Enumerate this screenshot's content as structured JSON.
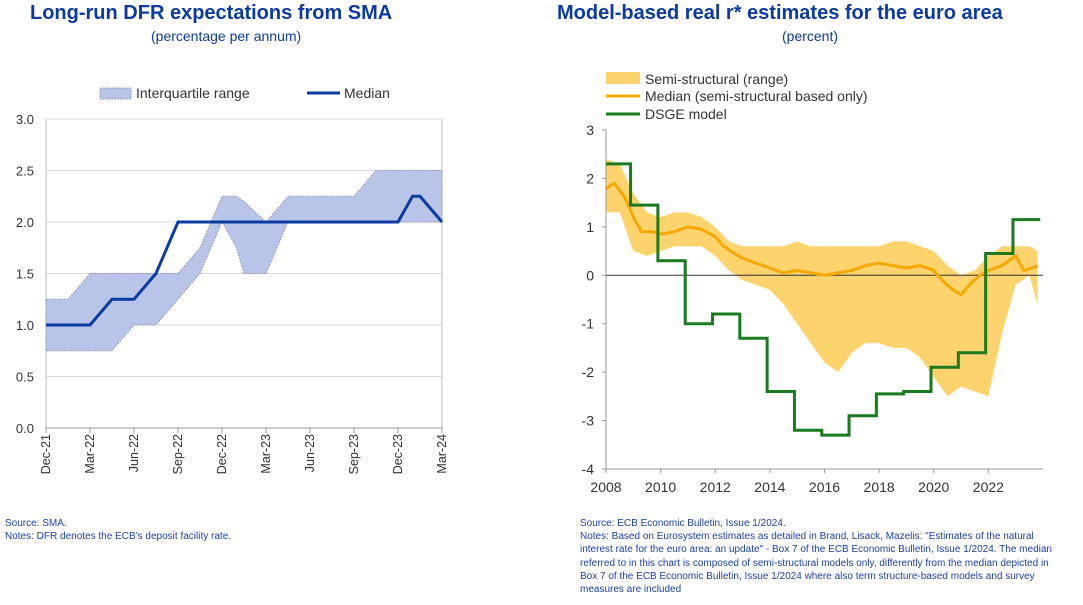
{
  "left": {
    "title": "Long-run DFR expectations from SMA",
    "subtitle": "(percentage per annum)",
    "source": "Source: SMA.",
    "notes": "Notes: DFR denotes the ECB’s deposit facility rate.",
    "colors": {
      "range_fill": "#b8c5e8",
      "range_edge": "#8a8fa6",
      "median": "#0b3aa0"
    },
    "chart_data": {
      "type": "area",
      "title": "Long-run DFR expectations from SMA",
      "ylim": [
        0,
        3
      ],
      "yticks": [
        "0.0",
        "0.5",
        "1.0",
        "1.5",
        "2.0",
        "2.5",
        "3.0"
      ],
      "xticks": [
        "Dec-21",
        "Mar-22",
        "Jun-22",
        "Sep-22",
        "Dec-22",
        "Mar-23",
        "Jun-23",
        "Sep-23",
        "Dec-23",
        "Mar-24"
      ],
      "legend": [
        "Interquartile range",
        "Median"
      ],
      "legend_position": "top",
      "grid": true,
      "x": [
        0,
        0.5,
        1,
        1.5,
        2,
        2.5,
        3,
        3.5,
        4,
        4.33,
        4.5,
        5,
        5.5,
        6,
        6.5,
        7,
        7.5,
        8,
        8.33,
        8.5,
        9
      ],
      "series": [
        {
          "name": "Interquartile range (upper)",
          "values": [
            1.25,
            1.25,
            1.5,
            1.5,
            1.5,
            1.5,
            1.5,
            1.75,
            2.25,
            2.25,
            2.2,
            2.0,
            2.25,
            2.25,
            2.25,
            2.25,
            2.5,
            2.5,
            2.5,
            2.5,
            2.5
          ]
        },
        {
          "name": "Interquartile range (lower)",
          "values": [
            0.75,
            0.75,
            0.75,
            0.75,
            1.0,
            1.0,
            1.25,
            1.5,
            2.0,
            1.75,
            1.5,
            1.5,
            2.0,
            2.0,
            2.0,
            2.0,
            2.0,
            2.0,
            2.0,
            2.0,
            2.0
          ]
        },
        {
          "name": "Median",
          "values": [
            1.0,
            1.0,
            1.0,
            1.25,
            1.25,
            1.5,
            2.0,
            2.0,
            2.0,
            2.0,
            2.0,
            2.0,
            2.0,
            2.0,
            2.0,
            2.0,
            2.0,
            2.0,
            2.25,
            2.25,
            2.0
          ]
        }
      ]
    }
  },
  "right": {
    "title": "Model-based real r* estimates for the euro area",
    "subtitle": "(percent)",
    "source": "Source: ECB Economic Bulletin, Issue 1/2024.",
    "notes": "Notes: Based on Eurosystem estimates as detailed in Brand, Lisack, Mazelis: \"Estimates of the natural interest rate for the euro area: an update\" - Box 7 of the ECB Economic Bulletin, Issue 1/2024. The median referred to in this chart is composed of semi-structural models only, differently from the median depicted in Box 7 of the ECB Economic Bulletin, Issue 1/2024 where also term structure-based models and survey measures are included",
    "colors": {
      "range_fill": "#fdd36e",
      "median": "#f5a800",
      "dsge": "#1a7a1f"
    },
    "chart_data": {
      "type": "line",
      "title": "Model-based real r* estimates for the euro area",
      "ylim": [
        -4,
        3
      ],
      "xlim": [
        2008,
        2024
      ],
      "yticks": [
        "3",
        "2",
        "1",
        "0",
        "-1",
        "-2",
        "-3",
        "-4"
      ],
      "xticks": [
        "2008",
        "2010",
        "2012",
        "2014",
        "2016",
        "2018",
        "2020",
        "2022"
      ],
      "legend": [
        "Semi-structural (range)",
        "Median (semi-structural based only)",
        "DSGE model"
      ],
      "legend_position": "top-left",
      "grid": false,
      "range_x": [
        2008,
        2008.5,
        2009,
        2009.5,
        2010,
        2010.5,
        2011,
        2011.5,
        2012,
        2012.5,
        2013,
        2013.5,
        2014,
        2014.5,
        2015,
        2015.5,
        2016,
        2016.5,
        2017,
        2017.5,
        2018,
        2018.5,
        2019,
        2019.5,
        2020,
        2020.5,
        2021,
        2021.5,
        2022,
        2022.5,
        2023,
        2023.5,
        2023.8
      ],
      "range_upper": [
        2.4,
        2.3,
        1.7,
        1.3,
        1.2,
        1.3,
        1.3,
        1.2,
        1.0,
        0.7,
        0.6,
        0.6,
        0.6,
        0.6,
        0.7,
        0.6,
        0.6,
        0.6,
        0.6,
        0.6,
        0.6,
        0.7,
        0.7,
        0.6,
        0.5,
        0.2,
        0.0,
        0.1,
        0.4,
        0.6,
        0.6,
        0.6,
        0.5
      ],
      "range_lower": [
        1.3,
        1.3,
        0.5,
        0.4,
        0.5,
        0.6,
        0.6,
        0.6,
        0.4,
        0.1,
        -0.1,
        -0.2,
        -0.3,
        -0.6,
        -1.0,
        -1.4,
        -1.8,
        -2.0,
        -1.6,
        -1.4,
        -1.4,
        -1.5,
        -1.5,
        -1.7,
        -2.1,
        -2.5,
        -2.3,
        -2.4,
        -2.5,
        -1.2,
        -0.2,
        0.0,
        -0.6
      ],
      "series": [
        {
          "name": "Median (semi-structural based only)",
          "x": [
            2008,
            2008.3,
            2008.7,
            2009,
            2009.3,
            2009.7,
            2010,
            2010.5,
            2011,
            2011.5,
            2012,
            2012.3,
            2012.7,
            2013,
            2013.5,
            2014,
            2014.5,
            2015,
            2015.5,
            2016,
            2016.5,
            2017,
            2017.5,
            2018,
            2018.5,
            2019,
            2019.5,
            2020,
            2020.3,
            2020.7,
            2021,
            2021.3,
            2021.7,
            2022,
            2022.5,
            2023,
            2023.3,
            2023.6,
            2023.8
          ],
          "values": [
            1.8,
            1.9,
            1.6,
            1.2,
            0.9,
            0.9,
            0.85,
            0.9,
            1.0,
            0.95,
            0.8,
            0.6,
            0.45,
            0.35,
            0.25,
            0.15,
            0.05,
            0.1,
            0.05,
            0.0,
            0.05,
            0.1,
            0.2,
            0.25,
            0.2,
            0.15,
            0.2,
            0.1,
            -0.1,
            -0.3,
            -0.4,
            -0.2,
            0.0,
            0.1,
            0.2,
            0.4,
            0.1,
            0.15,
            0.2
          ]
        },
        {
          "name": "DSGE model",
          "x": [
            2008,
            2008.9,
            2008.9,
            2009.9,
            2009.9,
            2010.9,
            2010.9,
            2011.9,
            2011.9,
            2012.9,
            2012.9,
            2013.9,
            2013.9,
            2014.9,
            2014.9,
            2015.9,
            2015.9,
            2016.9,
            2016.9,
            2017.9,
            2017.9,
            2018.9,
            2018.9,
            2019.9,
            2019.9,
            2020.9,
            2020.9,
            2021.9,
            2021.9,
            2022.9,
            2022.9,
            2023.9
          ],
          "values": [
            2.3,
            2.3,
            1.45,
            1.45,
            0.3,
            0.3,
            -1.0,
            -1.0,
            -0.8,
            -0.8,
            -1.3,
            -1.3,
            -2.4,
            -2.4,
            -3.2,
            -3.2,
            -3.3,
            -3.3,
            -2.9,
            -2.9,
            -2.45,
            -2.45,
            -2.4,
            -2.4,
            -1.9,
            -1.9,
            -1.6,
            -1.6,
            0.45,
            0.45,
            1.15,
            1.15
          ]
        }
      ]
    }
  }
}
